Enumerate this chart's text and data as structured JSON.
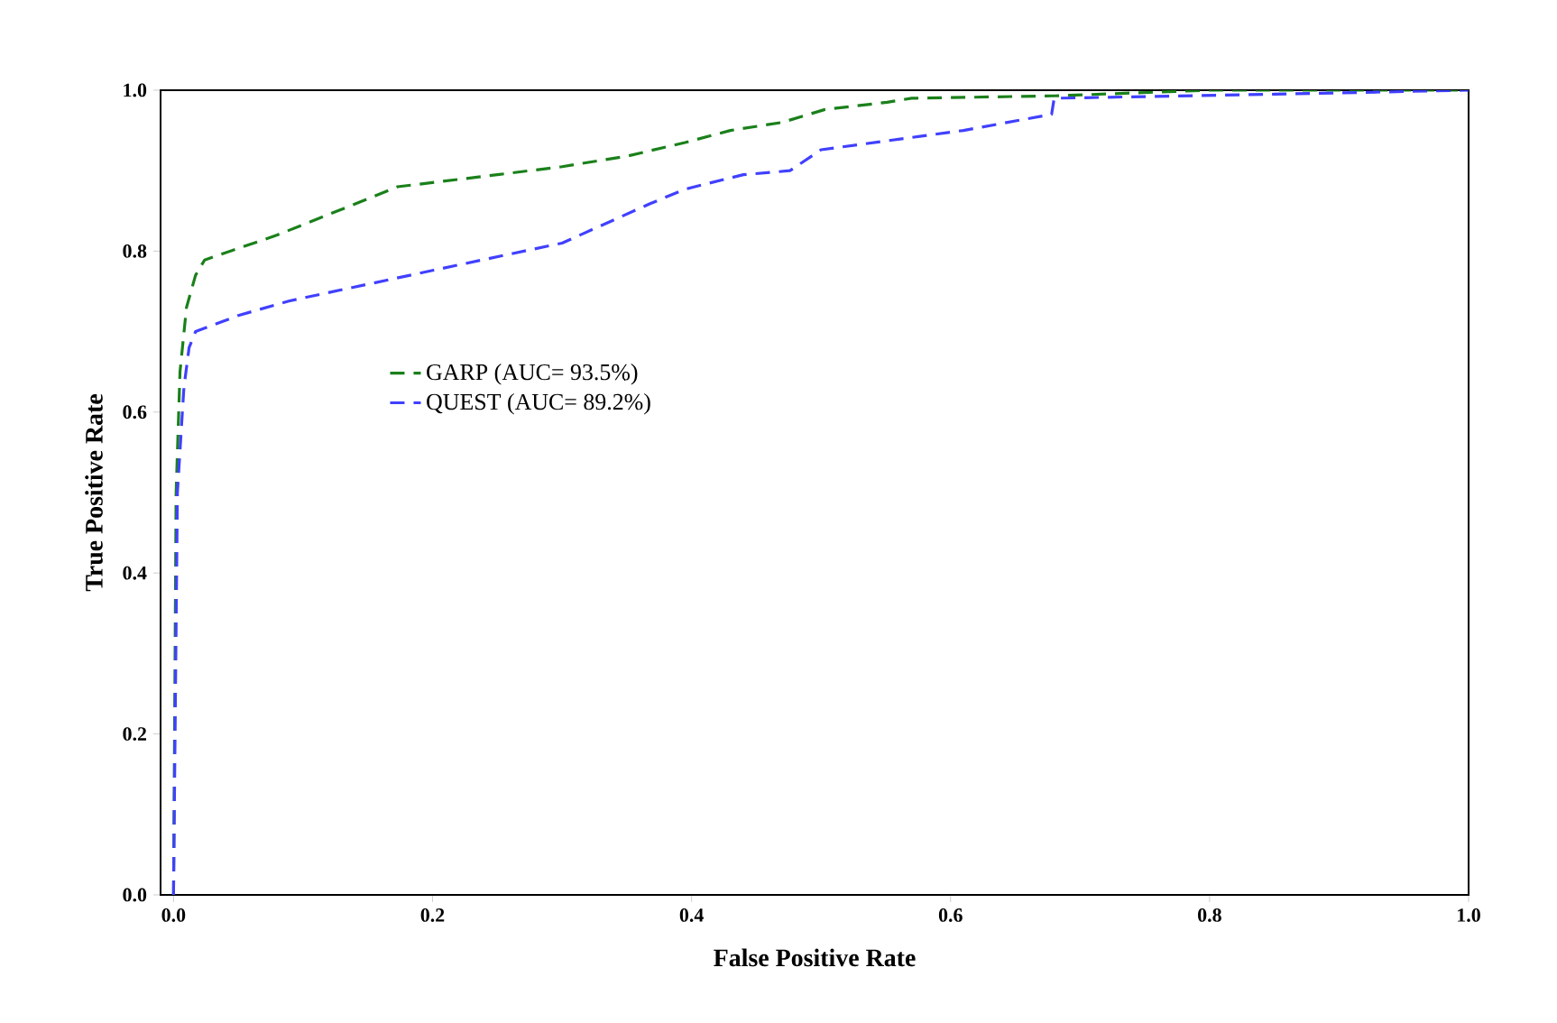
{
  "chart_data": {
    "type": "line",
    "xlabel": "False Positive Rate",
    "ylabel": "True Positive Rate",
    "xlim": [
      -0.01,
      1.0
    ],
    "ylim": [
      0,
      1.0
    ],
    "xticks": [
      {
        "value": 0,
        "label": "0.0"
      },
      {
        "value": 0.2,
        "label": "0.2"
      },
      {
        "value": 0.4,
        "label": "0.4"
      },
      {
        "value": 0.6,
        "label": "0.6"
      },
      {
        "value": 0.8,
        "label": "0.8"
      },
      {
        "value": 1.0,
        "label": "1.0"
      }
    ],
    "yticks": [
      {
        "value": 0,
        "label": "0.0"
      },
      {
        "value": 0.2,
        "label": "0.2"
      },
      {
        "value": 0.4,
        "label": "0.4"
      },
      {
        "value": 0.6,
        "label": "0.6"
      },
      {
        "value": 0.8,
        "label": "0.8"
      },
      {
        "value": 1.0,
        "label": "1.0"
      }
    ],
    "legend": "center left",
    "line_style": "dashed",
    "marker": "none",
    "grid": false,
    "series": [
      {
        "name": "GARP (AUC= 93.5%)",
        "color": "#1a801a",
        "x": [
          0,
          0.002,
          0.005,
          0.01,
          0.017,
          0.024,
          0.08,
          0.15,
          0.173,
          0.25,
          0.3,
          0.35,
          0.395,
          0.43,
          0.47,
          0.503,
          0.551,
          0.57,
          0.68,
          0.8,
          1.0
        ],
        "values": [
          0,
          0.5,
          0.65,
          0.73,
          0.77,
          0.789,
          0.82,
          0.865,
          0.88,
          0.895,
          0.905,
          0.918,
          0.935,
          0.95,
          0.96,
          0.976,
          0.985,
          0.99,
          0.993,
          1.0,
          1.0
        ]
      },
      {
        "name": "QUEST (AUC= 89.2%)",
        "color": "#4040ff",
        "x": [
          0,
          0.003,
          0.008,
          0.012,
          0.017,
          0.05,
          0.089,
          0.2,
          0.3,
          0.368,
          0.395,
          0.44,
          0.476,
          0.5,
          0.61,
          0.678,
          0.68,
          0.85,
          1.0
        ],
        "values": [
          0,
          0.5,
          0.63,
          0.68,
          0.7,
          0.72,
          0.738,
          0.776,
          0.81,
          0.859,
          0.877,
          0.895,
          0.9,
          0.926,
          0.95,
          0.97,
          0.99,
          0.995,
          1.0
        ]
      }
    ]
  }
}
